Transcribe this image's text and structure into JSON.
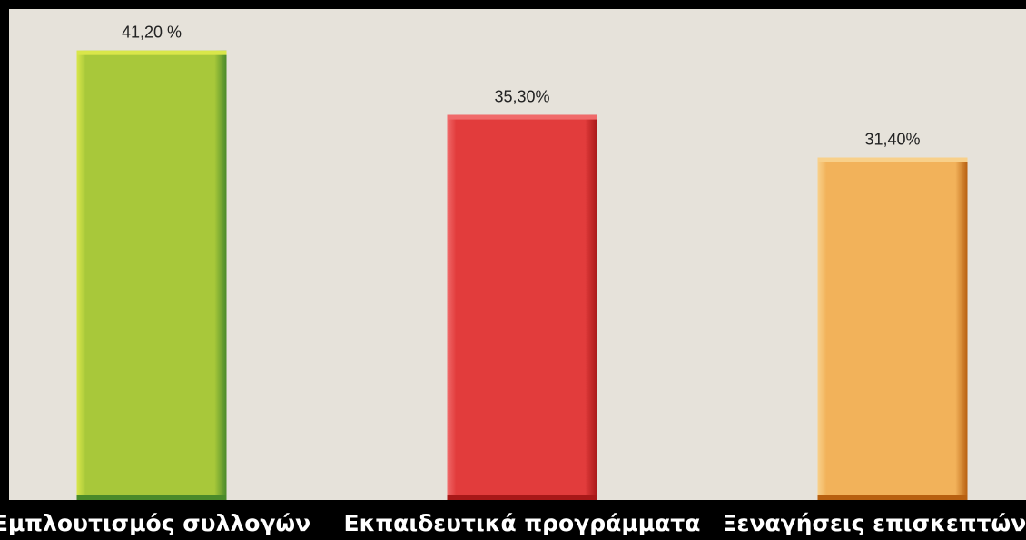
{
  "chart_data": {
    "type": "bar",
    "categories": [
      "Εμπλουτισμός συλλογών",
      "Εκπαιδευτικά προγράμματα",
      "Ξεναγήσεις επισκεπτών"
    ],
    "values": [
      41.2,
      35.3,
      31.4
    ],
    "value_labels": [
      "41,20 %",
      "35,30%",
      "31,40%"
    ],
    "ylim": [
      0,
      45
    ],
    "grid": false,
    "colors": {
      "bars": [
        "#a8c83a",
        "#e23c3c",
        "#f2b25a"
      ],
      "bar_light": [
        "#d9e64a",
        "#f06a6a",
        "#f8d08a"
      ],
      "bar_dark": [
        "#4a8a2a",
        "#a81818",
        "#b86010"
      ],
      "plot_background": "#e6e2da",
      "frame": "#000000",
      "label_text": "#ffffff",
      "value_text": "#222222"
    }
  }
}
